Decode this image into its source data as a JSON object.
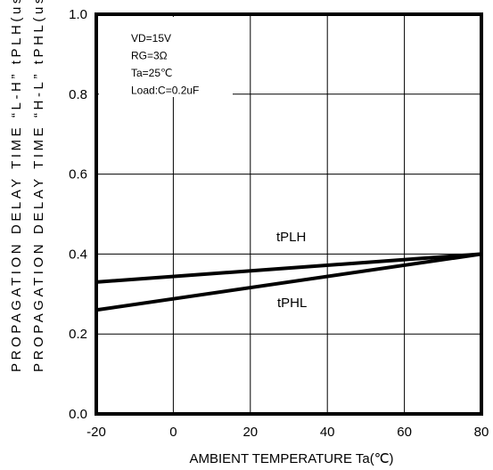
{
  "chart_data": {
    "type": "line",
    "title": "",
    "xlabel": "AMBIENT TEMPERATURE Ta(℃)",
    "ylabels": [
      "PROPAGATION DELAY TIME “L-H” tPLH(us)",
      "PROPAGATION DELAY TIME “H-L” tPHL(us)"
    ],
    "xlim": [
      -20,
      80
    ],
    "ylim": [
      0.0,
      1.0
    ],
    "x_ticks": [
      -20,
      0,
      20,
      40,
      60,
      80
    ],
    "x_tick_labels": [
      "-20",
      "0",
      "20",
      "40",
      "60",
      "80"
    ],
    "y_ticks": [
      0.0,
      0.2,
      0.4,
      0.6,
      0.8,
      1.0
    ],
    "y_tick_labels": [
      "0.0",
      "0.2",
      "0.4",
      "0.6",
      "0.8",
      "1.0"
    ],
    "grid": true,
    "conditions": [
      "VD=15V",
      "RG=3Ω",
      "Ta=25℃",
      "Load:C=0.2uF"
    ],
    "series": [
      {
        "name": "tPLH",
        "x": [
          -20,
          80
        ],
        "y": [
          0.33,
          0.4
        ]
      },
      {
        "name": "tPHL",
        "x": [
          -20,
          80
        ],
        "y": [
          0.26,
          0.4
        ]
      }
    ]
  }
}
